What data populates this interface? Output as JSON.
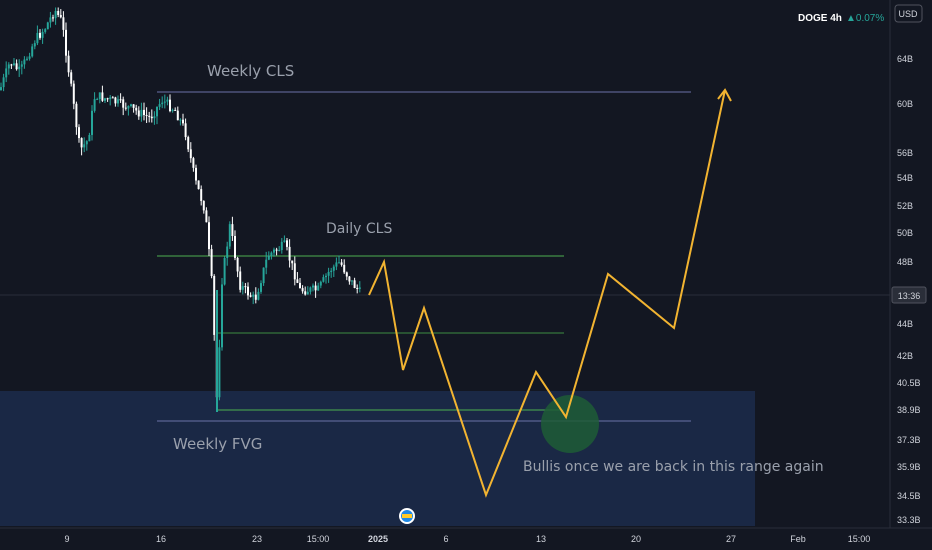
{
  "chart_data": {
    "type": "candlestick",
    "symbol": "DOGE",
    "interval": "4h",
    "change": "▲0.07%",
    "currency": "USD",
    "price_tag": "13:36",
    "y_ticks": [
      "64B",
      "60B",
      "56B",
      "54B",
      "52B",
      "50B",
      "48B",
      "44B",
      "42B",
      "40.5B",
      "38.9B",
      "37.3B",
      "35.9B",
      "34.5B",
      "33.3B"
    ],
    "x_ticks": [
      "9",
      "16",
      "23",
      "15:00",
      "2025",
      "6",
      "13",
      "20",
      "27",
      "Feb",
      "15:00"
    ],
    "annotations": [
      "Weekly CLS",
      "Daily CLS",
      "Weekly FVG",
      "Bullis once we are back in this range again"
    ],
    "colors": {
      "background": "#131722",
      "up": "#26a69a",
      "down": "#ffffff",
      "projection": "#f2b431",
      "fvg_zone": "#1a2845",
      "level": "#4caf50",
      "weekly_cls": "#6b72a8",
      "highlight": "#1f5c36"
    }
  }
}
